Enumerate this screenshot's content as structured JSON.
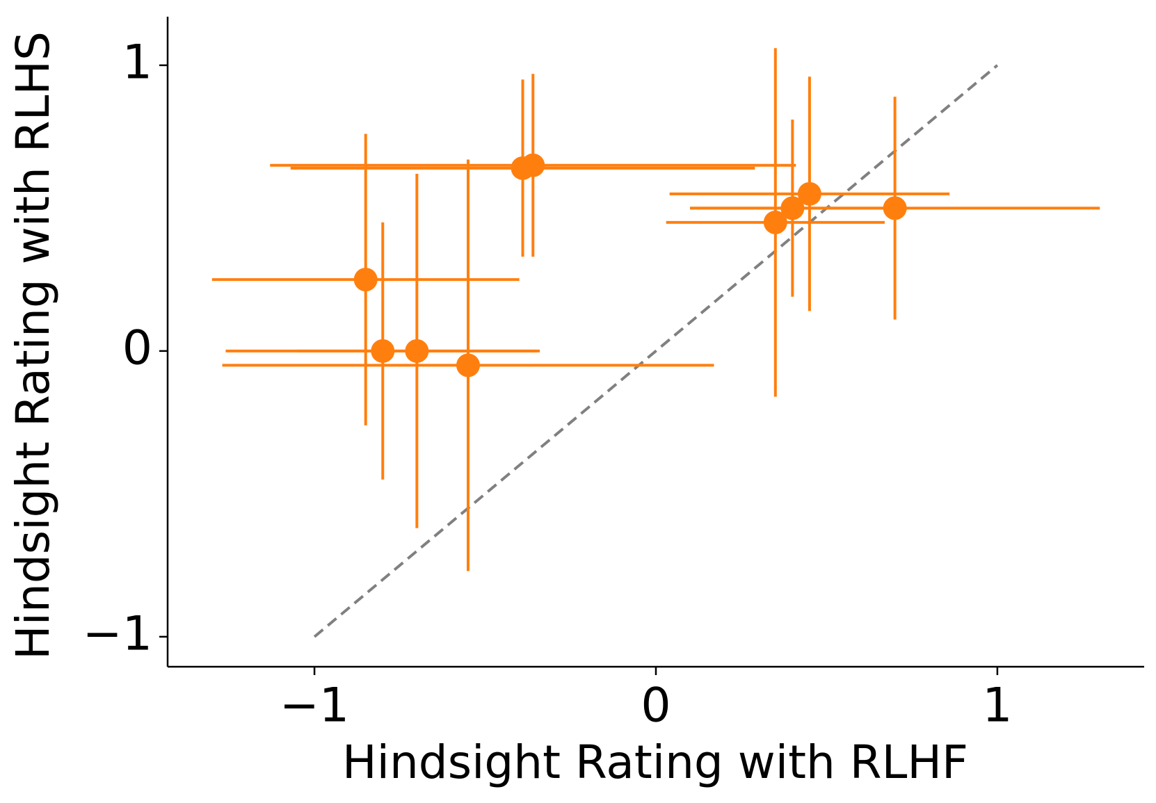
{
  "chart_data": {
    "type": "scatter",
    "x_label": "Hindsight Rating with RLHF",
    "y_label": "Hindsight Rating with RLHS",
    "x": [
      -0.85,
      -0.8,
      -0.7,
      -0.55,
      -0.39,
      -0.36,
      0.35,
      0.4,
      0.45,
      0.7
    ],
    "series": [
      {
        "color": "#ff7f0e",
        "values": [
          0.25,
          0,
          0,
          -0.05,
          0.64,
          0.65,
          0.45,
          0.5,
          0.55,
          0.5
        ],
        "xerr": [
          0.45,
          0.46,
          0.35,
          0.72,
          0.68,
          0.77,
          0.32,
          0.3,
          0.41,
          0.6
        ],
        "yerr": [
          0.51,
          0.45,
          0.62,
          0.72,
          0.31,
          0.32,
          0.61,
          0.31,
          0.41,
          0.39
        ]
      }
    ],
    "reference_line": {
      "x": [
        -1,
        1
      ],
      "y": [
        -1,
        1
      ],
      "color": "#808080",
      "style": "dashed"
    },
    "xlim": [
      -1.43,
      1.43
    ],
    "ylim": [
      -1.105,
      1.17
    ],
    "xticks": [
      {
        "value": -1,
        "label": "−1"
      },
      0,
      1
    ],
    "yticks": [
      {
        "value": -1,
        "label": "−1"
      },
      0,
      1
    ]
  }
}
